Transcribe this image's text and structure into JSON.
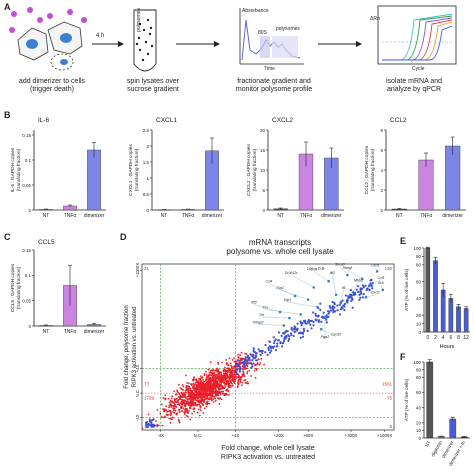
{
  "panels": {
    "A": "A",
    "B": "B",
    "C": "C",
    "D": "D",
    "E": "E",
    "F": "F"
  },
  "workflow": {
    "step1": "add dimerizer to cells\n(trigger death)",
    "arrow1": "4 h",
    "step2": "spin lysates over\nsucrose gradient",
    "tube_label": "polysomes",
    "step3": "fractionate gradient and\nmonitor polysome profile",
    "profile_y": "Absorbance",
    "profile_x": "Time",
    "profile_80s": "80S",
    "profile_poly": "polysomes",
    "step4": "isolate mRNA and\nanalyze by qPCR",
    "qpcr_y": "ΔRn",
    "qpcr_x": "Cycle"
  },
  "colors": {
    "nt": "#555555",
    "tnf": "#c985e0",
    "dim": "#7b86e8",
    "red": "#e8202a",
    "blue": "#3a4fd8",
    "green": "#3a9a3a",
    "dark": "#333333"
  },
  "chart_data": [
    {
      "id": "B1",
      "type": "bar",
      "title": "IL-6",
      "ylabel": "IL-6 : GAPDH copies\n(translating fraction)",
      "categories": [
        "NT",
        "TNFα",
        "dimerizer"
      ],
      "values": [
        0.001,
        0.008,
        0.12
      ],
      "errors": [
        0.001,
        0.002,
        0.015
      ],
      "ylim": [
        0,
        0.16
      ],
      "yticks": [
        0.0,
        0.05,
        0.1,
        0.15
      ]
    },
    {
      "id": "B2",
      "type": "bar",
      "title": "CXCL1",
      "ylabel": "CXCL1 : GAPDH copies\n(translating fraction)",
      "categories": [
        "NT",
        "TNFα",
        "dimerizer"
      ],
      "values": [
        0.01,
        0.02,
        1.85
      ],
      "errors": [
        0.005,
        0.01,
        0.4
      ],
      "ylim": [
        0,
        2.5
      ],
      "yticks": [
        0.0,
        0.5,
        1.0,
        1.5,
        2.0,
        2.5
      ]
    },
    {
      "id": "B3",
      "type": "bar",
      "title": "CXCL2",
      "ylabel": "CXCL2 : GAPDH copies\n(translating fraction)",
      "categories": [
        "NT",
        "TNFα",
        "dimerizer"
      ],
      "values": [
        0.3,
        14,
        13
      ],
      "errors": [
        0.2,
        3,
        2.5
      ],
      "ylim": [
        0,
        20
      ],
      "yticks": [
        0,
        5,
        10,
        15,
        20
      ]
    },
    {
      "id": "B4",
      "type": "bar",
      "title": "CCL2",
      "ylabel": "CCL2 : GAPDH copies\n(translating fraction)",
      "categories": [
        "NT",
        "TNFα",
        "dimerizer"
      ],
      "values": [
        0.1,
        5,
        6.4
      ],
      "errors": [
        0.05,
        0.7,
        0.9
      ],
      "ylim": [
        0,
        8
      ],
      "yticks": [
        0,
        2,
        4,
        6,
        8
      ]
    },
    {
      "id": "C",
      "type": "bar",
      "title": "CCL5",
      "ylabel": "CCL5 : GAPDH copies\n(translating fraction)",
      "categories": [
        "NT",
        "TNFα",
        "dimerizer"
      ],
      "values": [
        0.001,
        0.08,
        0.003
      ],
      "errors": [
        0.001,
        0.04,
        0.002
      ],
      "ylim": [
        0,
        0.15
      ],
      "yticks": [
        0.0,
        0.05,
        0.1,
        0.15
      ]
    },
    {
      "id": "D",
      "type": "scatter",
      "title": "mRNA transcripts\npolysome vs. whole cell lysate",
      "corr": "cor = 0.8",
      "xlabel": "Fold change, whole cell lysate\nRIPK3 activation vs. untreated",
      "ylabel": "Fold change, polysome fraction\nRIPK3 activation vs. untreated",
      "xticks": [
        "-4X",
        "N.C.",
        "+4X",
        "+20X",
        "+60X",
        "+300X",
        "+1000X"
      ],
      "yticks": [
        "+1000X",
        "+4X",
        "N.C.",
        "-4X"
      ],
      "quadrant_counts": {
        "tl_top": "21",
        "tl_mid": "73",
        "tl_bot": "1729",
        "tr_top": "130",
        "tr_mid": "1561",
        "tr_bot": "75",
        "bl": "15",
        "br": "5"
      },
      "labels": [
        "Cxcl1",
        "Ccl5",
        "Zc3h12c",
        "Ifit2",
        "Egr2",
        "Egr1",
        "Nfkbiz",
        "Il1a",
        "Il6",
        "Cxcl2",
        "Ptgs2",
        "Tnfaip3",
        "Hbegf",
        "Ccl4",
        "Ccl3",
        "Socs3",
        "Il1b",
        "Klf2",
        "Ier3",
        "Cxcl10",
        "Tnf"
      ]
    },
    {
      "id": "E",
      "type": "bar",
      "title": "",
      "xlabel": "Hours",
      "ylabel": "ATP (% of live cells)",
      "categories": [
        "0",
        "2",
        "4",
        "6",
        "8",
        "12"
      ],
      "values": [
        100,
        85,
        50,
        40,
        30,
        28
      ],
      "errors": [
        1,
        4,
        8,
        5,
        3,
        2
      ],
      "ylim": [
        0,
        100
      ],
      "yticks": [
        0,
        10,
        20,
        40,
        60,
        80,
        90,
        100
      ]
    },
    {
      "id": "F",
      "type": "bar",
      "title": "",
      "ylabel": "ATP (% of live cells)",
      "categories": [
        "NT",
        "digitonin",
        "dimerizer",
        "dimerizer + fn"
      ],
      "values": [
        100,
        2,
        25,
        1.5
      ],
      "errors": [
        3,
        0.5,
        2,
        0.5
      ],
      "ylim": [
        0,
        100
      ],
      "yticks": [
        0,
        10,
        20,
        40,
        60,
        80,
        90,
        100
      ]
    }
  ]
}
